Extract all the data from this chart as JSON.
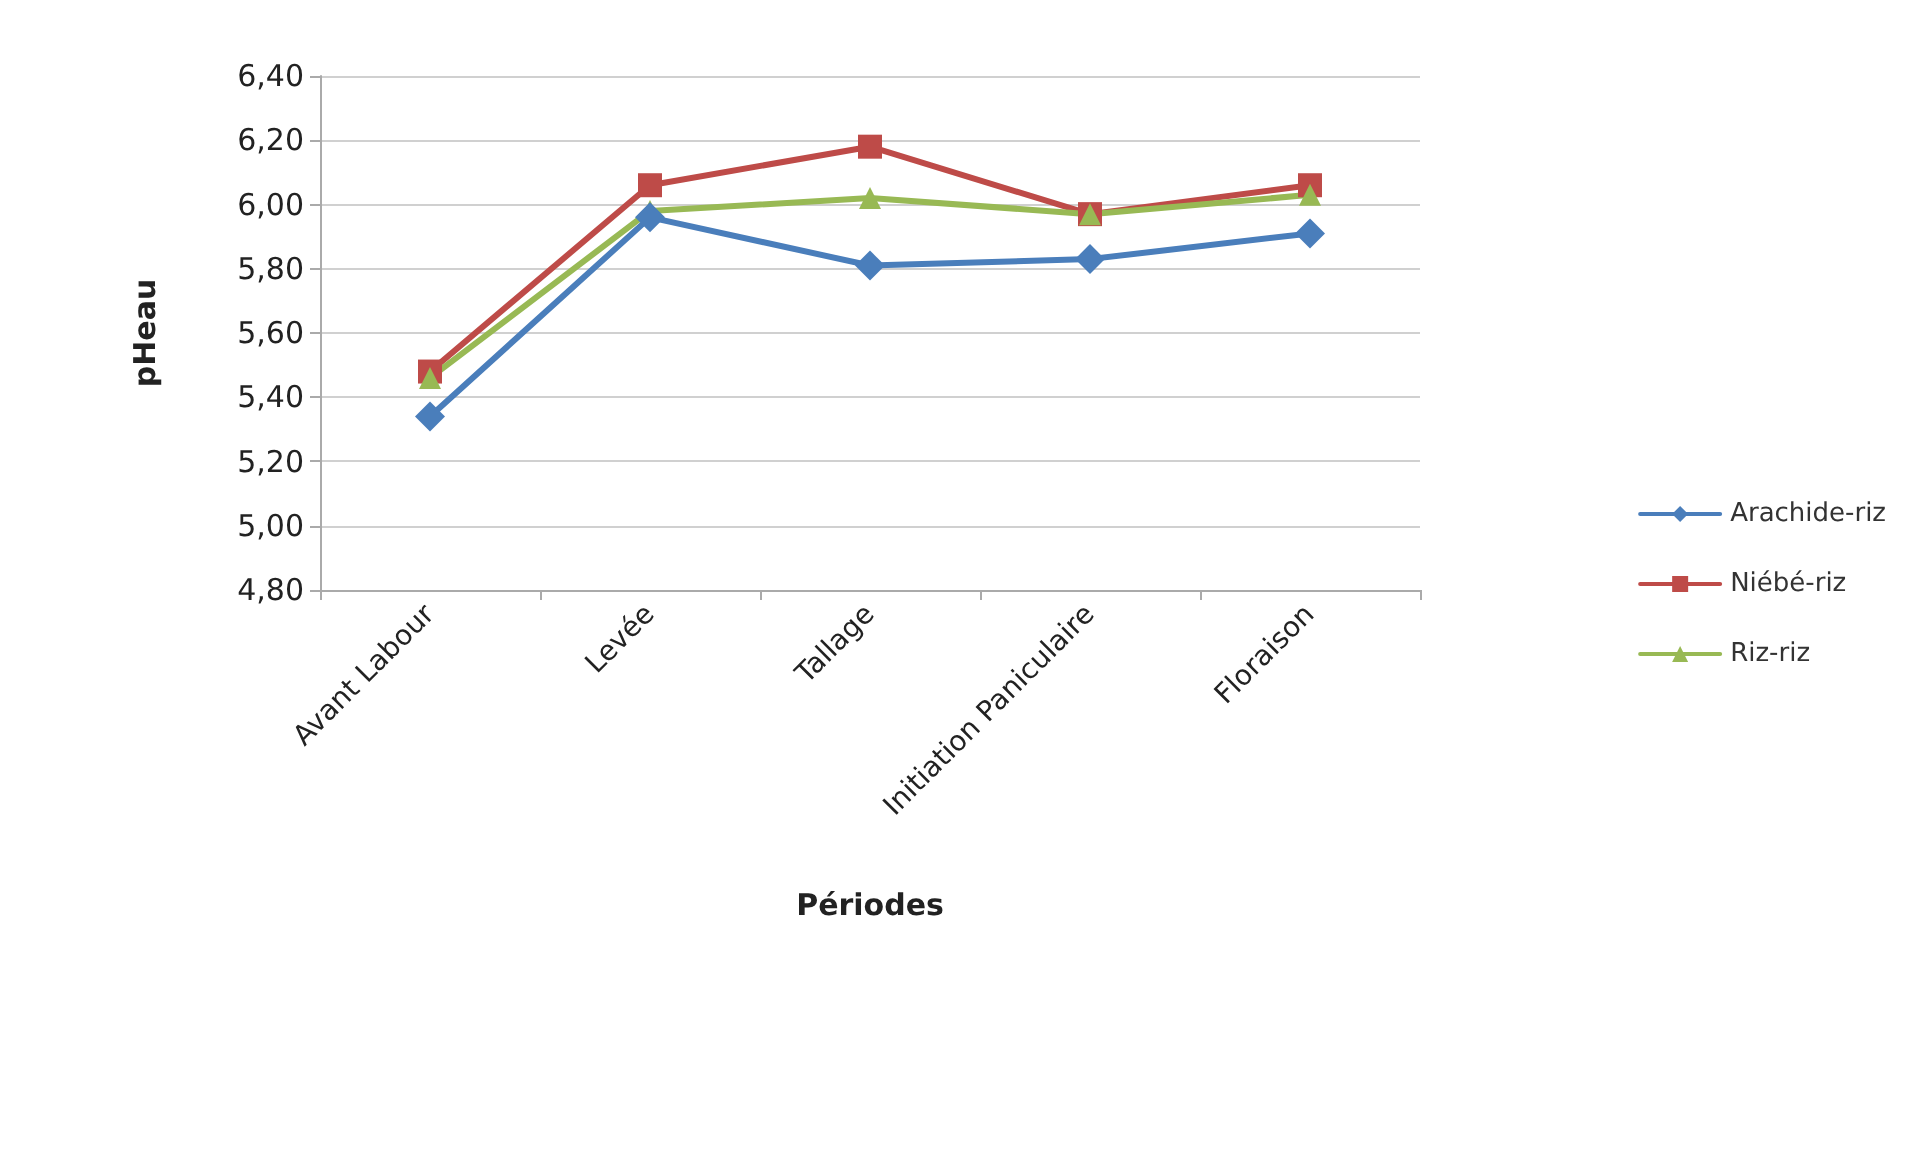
{
  "chart_data": {
    "type": "line",
    "xlabel": "Périodes",
    "ylabel": "pHeau",
    "categories": [
      "Avant Labour",
      "Levée",
      "Tallage",
      "Initiation Paniculaire",
      "Floraison"
    ],
    "series": [
      {
        "name": "Arachide-riz",
        "color": "#4a7ebb",
        "marker": "diamond",
        "values": [
          5.34,
          5.96,
          5.81,
          5.83,
          5.91
        ]
      },
      {
        "name": "Niébé-riz",
        "color": "#be4b48",
        "marker": "square",
        "values": [
          5.48,
          6.06,
          6.18,
          5.97,
          6.06
        ]
      },
      {
        "name": "Riz-riz",
        "color": "#98b954",
        "marker": "triangle",
        "values": [
          5.46,
          5.98,
          6.02,
          5.97,
          6.03
        ]
      }
    ],
    "ylim": [
      4.8,
      6.4
    ],
    "yticks": [
      {
        "value": 4.8,
        "label": "4,80"
      },
      {
        "value": 5.0,
        "label": "5,00"
      },
      {
        "value": 5.2,
        "label": "5,20"
      },
      {
        "value": 5.4,
        "label": "5,40"
      },
      {
        "value": 5.6,
        "label": "5,60"
      },
      {
        "value": 5.8,
        "label": "5,80"
      },
      {
        "value": 6.0,
        "label": "6,00"
      },
      {
        "value": 6.2,
        "label": "6,20"
      },
      {
        "value": 6.4,
        "label": "6,40"
      }
    ],
    "grid": "y",
    "legend": "right",
    "line_style": "solid"
  }
}
